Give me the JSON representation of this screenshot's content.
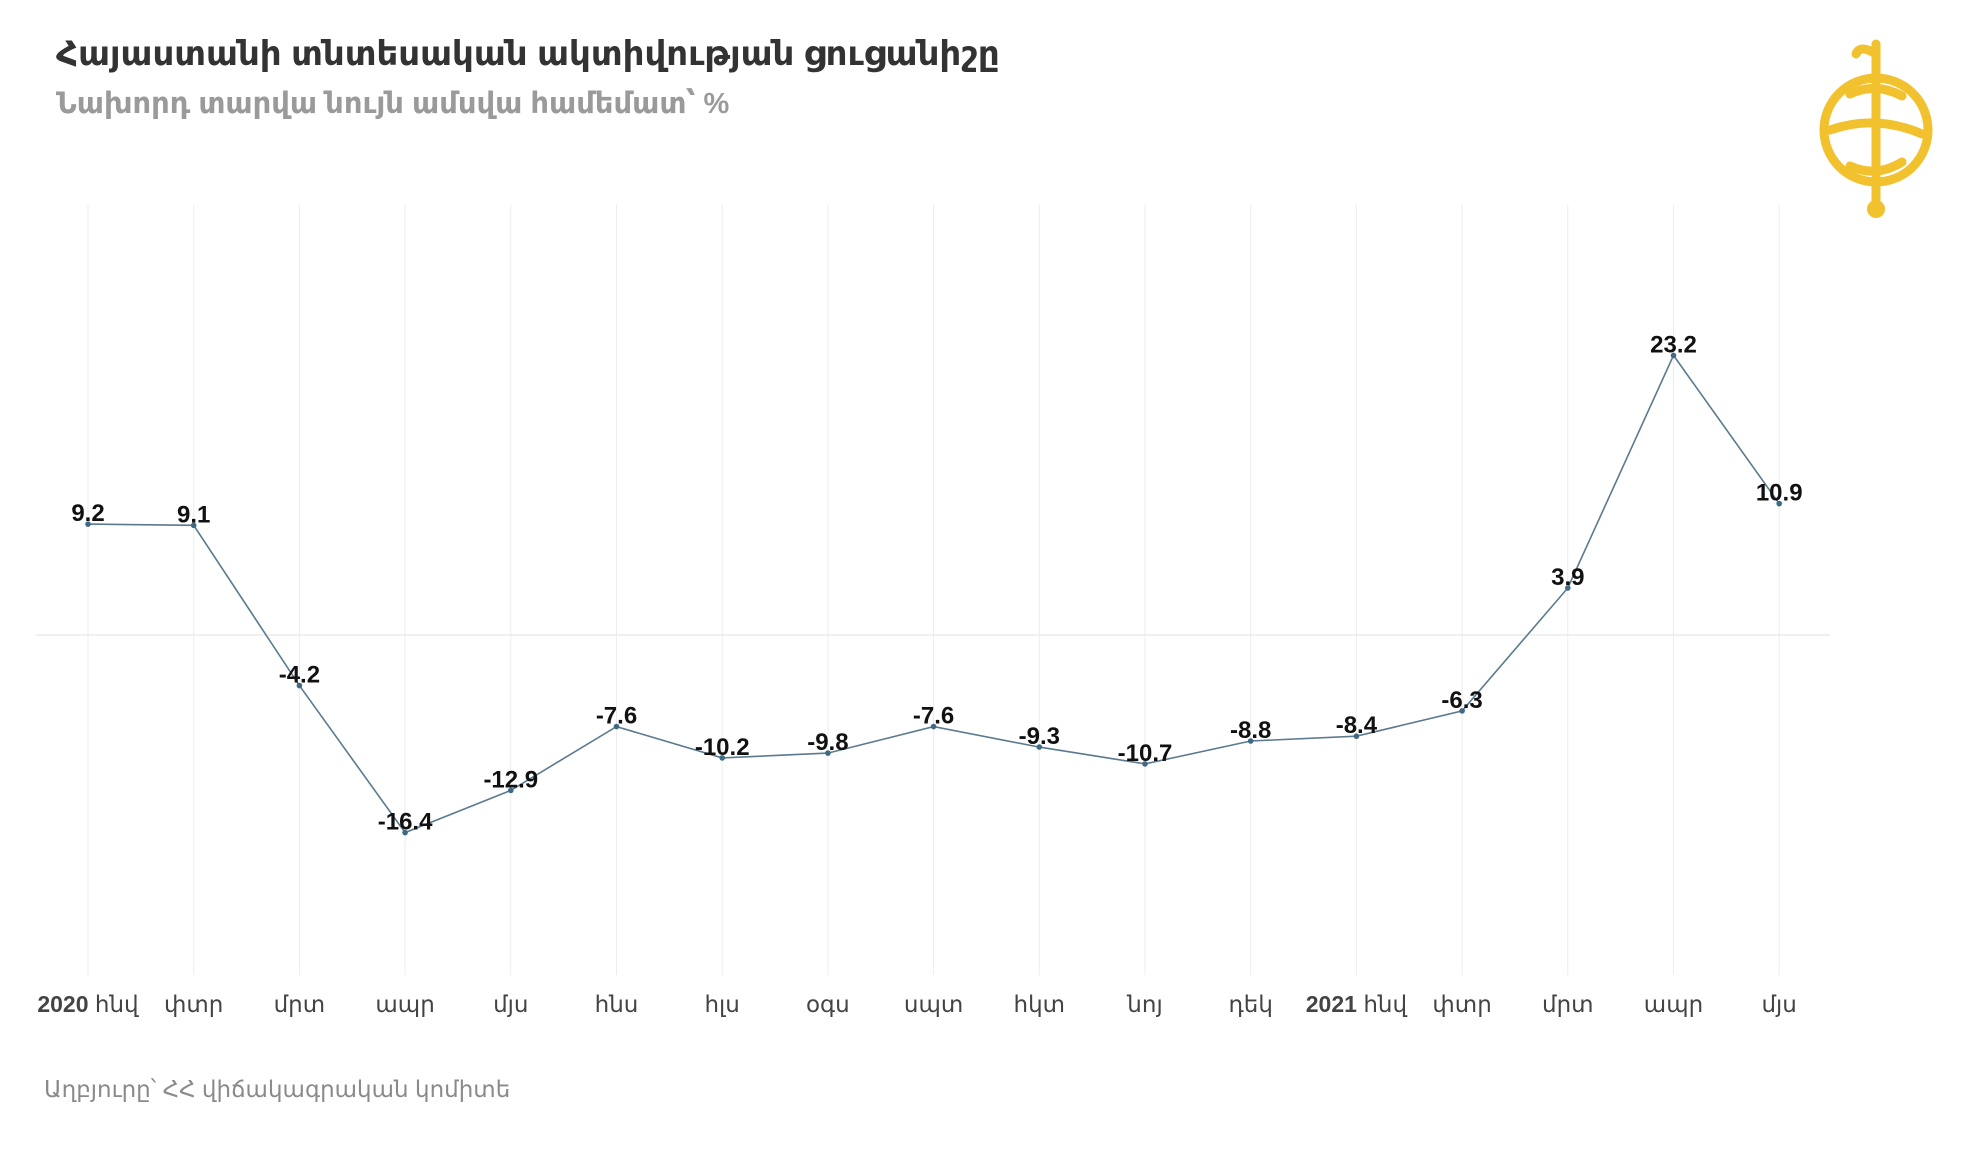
{
  "header": {
    "title": "Հայաստանի տնտեսական ակտիվության ցուցանիշը",
    "subtitle": "Նախորդ տարվա նույն ամսվա համեմատ՝ %"
  },
  "footer": {
    "source": "Աղբյուրը՝ ՀՀ վիճակագրական կոմիտե"
  },
  "logo": {
    "icon": "globe-logo-icon",
    "color": "#f2c12e"
  },
  "colors": {
    "line": "#5b7a8f",
    "point": "#3e6a85",
    "grid": "#ececec"
  },
  "chart_data": {
    "type": "line",
    "title": "Հայաստանի տնտեսական ակտիվության ցուցանիշը",
    "subtitle": "Նախորդ տարվա նույն ամսվա համեմատ՝ %",
    "xlabel": "",
    "ylabel": "",
    "categories": [
      {
        "year": "2020",
        "month": "հնվ"
      },
      {
        "year": "",
        "month": "փտր"
      },
      {
        "year": "",
        "month": "մրտ"
      },
      {
        "year": "",
        "month": "ապր"
      },
      {
        "year": "",
        "month": "մյս"
      },
      {
        "year": "",
        "month": "հնս"
      },
      {
        "year": "",
        "month": "հլս"
      },
      {
        "year": "",
        "month": "օգս"
      },
      {
        "year": "",
        "month": "սպտ"
      },
      {
        "year": "",
        "month": "հկտ"
      },
      {
        "year": "",
        "month": "նոյ"
      },
      {
        "year": "",
        "month": "դեկ"
      },
      {
        "year": "2021",
        "month": "հնվ"
      },
      {
        "year": "",
        "month": "փտր"
      },
      {
        "year": "",
        "month": "մրտ"
      },
      {
        "year": "",
        "month": "ապր"
      },
      {
        "year": "",
        "month": "մյս"
      }
    ],
    "series": [
      {
        "values": [
          9.2,
          9.1,
          -4.2,
          -16.4,
          -12.9,
          -7.6,
          -10.2,
          -9.8,
          -7.6,
          -9.3,
          -10.7,
          -8.8,
          -8.4,
          -6.3,
          3.9,
          23.2,
          10.9
        ],
        "labels": [
          "9.2",
          "9.1",
          "-4.2",
          "-16.4",
          "-12.9",
          "-7.6",
          "-10.2",
          "-9.8",
          "-7.6",
          "-9.3",
          "-10.7",
          "-8.8",
          "-8.4",
          "-6.3",
          "3.9",
          "23.2",
          "10.9"
        ]
      }
    ],
    "ylim": [
      -20,
      25
    ],
    "gridlines": {
      "horizontal_at": [
        0
      ],
      "vertical": true
    },
    "legend": "none"
  }
}
